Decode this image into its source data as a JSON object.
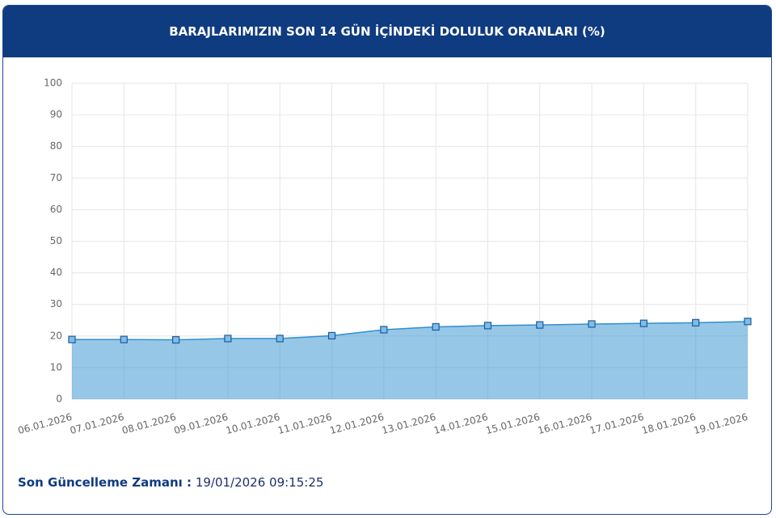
{
  "chart_data": {
    "type": "area",
    "title": "BARAJLARIMIZIN SON 14 GÜN İÇİNDEKİ DOLULUK ORANLARI (%)",
    "categories": [
      "06.01.2026",
      "07.01.2026",
      "08.01.2026",
      "09.01.2026",
      "10.01.2026",
      "11.01.2026",
      "12.01.2026",
      "13.01.2026",
      "14.01.2026",
      "15.01.2026",
      "16.01.2026",
      "17.01.2026",
      "18.01.2026",
      "19.01.2026"
    ],
    "values": [
      18.9,
      18.9,
      18.8,
      19.2,
      19.2,
      20.1,
      22.0,
      22.9,
      23.3,
      23.5,
      23.8,
      24.0,
      24.2,
      24.6
    ],
    "color": "#2f8fd0",
    "ylim": [
      0,
      100
    ],
    "yticks": [
      0,
      10,
      20,
      30,
      40,
      50,
      60,
      70,
      80,
      90,
      100
    ],
    "grid": true
  },
  "footer": {
    "label": "Son Güncelleme Zamanı :",
    "value": "19/01/2026 09:15:25"
  }
}
